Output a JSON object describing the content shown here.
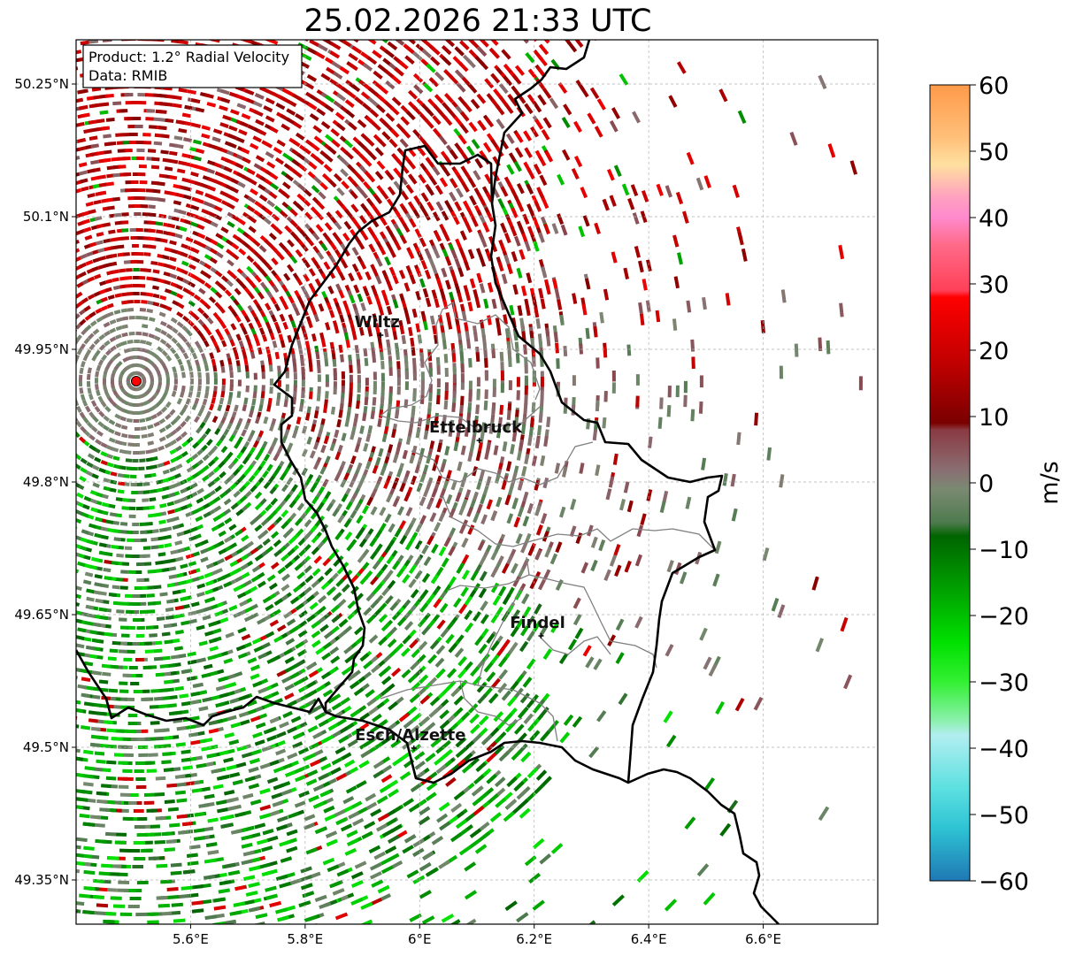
{
  "title": "25.02.2026 21:33 UTC",
  "info": {
    "product": "Product: 1.2° Radial Velocity",
    "data": "Data: RMIB"
  },
  "map": {
    "lon_range": [
      5.4,
      6.8
    ],
    "lat_range": [
      49.3,
      50.3
    ],
    "lon_ticks": [
      {
        "value": 5.6,
        "label": "5.6°E"
      },
      {
        "value": 5.8,
        "label": "5.8°E"
      },
      {
        "value": 6.0,
        "label": "6°E"
      },
      {
        "value": 6.2,
        "label": "6.2°E"
      },
      {
        "value": 6.4,
        "label": "6.4°E"
      },
      {
        "value": 6.6,
        "label": "6.6°E"
      }
    ],
    "lat_ticks": [
      {
        "value": 50.25,
        "label": "50.25°N"
      },
      {
        "value": 50.1,
        "label": "50.1°N"
      },
      {
        "value": 49.95,
        "label": "49.95°N"
      },
      {
        "value": 49.8,
        "label": "49.8°N"
      },
      {
        "value": 49.65,
        "label": "49.65°N"
      },
      {
        "value": 49.5,
        "label": "49.5°N"
      },
      {
        "value": 49.35,
        "label": "49.35°N"
      }
    ],
    "grid": true,
    "radar_site": {
      "lon": 5.505,
      "lat": 49.914
    },
    "cities": [
      {
        "name": "Wiltz",
        "lon": 5.932,
        "lat": 49.966
      },
      {
        "name": "Ettelbruck",
        "lon": 6.104,
        "lat": 49.847
      },
      {
        "name": "Findel",
        "lon": 6.212,
        "lat": 49.626
      },
      {
        "name": "Esch/Alzette",
        "lon": 5.99,
        "lat": 49.499
      }
    ]
  },
  "colorbar": {
    "label": "m/s",
    "range": [
      -60,
      60
    ],
    "ticks": [
      {
        "value": 60,
        "label": "60"
      },
      {
        "value": 50,
        "label": "50"
      },
      {
        "value": 40,
        "label": "40"
      },
      {
        "value": 30,
        "label": "30"
      },
      {
        "value": 20,
        "label": "20"
      },
      {
        "value": 10,
        "label": "10"
      },
      {
        "value": 0,
        "label": "0"
      },
      {
        "value": -10,
        "label": "−10"
      },
      {
        "value": -20,
        "label": "−20"
      },
      {
        "value": -30,
        "label": "−30"
      },
      {
        "value": -40,
        "label": "−40"
      },
      {
        "value": -50,
        "label": "−50"
      },
      {
        "value": -60,
        "label": "−60"
      }
    ],
    "stops": [
      {
        "value": -60,
        "color": "#1f78b4"
      },
      {
        "value": -52,
        "color": "#2ec4d4"
      },
      {
        "value": -46,
        "color": "#5de0e0"
      },
      {
        "value": -38,
        "color": "#b2eef0"
      },
      {
        "value": -36,
        "color": "#8ef0b0"
      },
      {
        "value": -30,
        "color": "#33f033"
      },
      {
        "value": -24,
        "color": "#00e000"
      },
      {
        "value": -16,
        "color": "#00a000"
      },
      {
        "value": -8,
        "color": "#006400"
      },
      {
        "value": -6,
        "color": "#4e7a4e"
      },
      {
        "value": -1,
        "color": "#7a8a72"
      },
      {
        "value": 2,
        "color": "#8a6e72"
      },
      {
        "value": 8,
        "color": "#8a3a42"
      },
      {
        "value": 9,
        "color": "#7a0000"
      },
      {
        "value": 18,
        "color": "#c00000"
      },
      {
        "value": 28,
        "color": "#ff0000"
      },
      {
        "value": 29,
        "color": "#ff4058"
      },
      {
        "value": 36,
        "color": "#ff6b8a"
      },
      {
        "value": 40,
        "color": "#ff8acd"
      },
      {
        "value": 43,
        "color": "#ffa0c0"
      },
      {
        "value": 48,
        "color": "#ffe0a0"
      },
      {
        "value": 52,
        "color": "#ffc07a"
      },
      {
        "value": 60,
        "color": "#ff9a4a"
      }
    ]
  },
  "colors": {
    "border": "#000000",
    "canton_border": "#808080",
    "radar_dot": "#ff0000"
  }
}
